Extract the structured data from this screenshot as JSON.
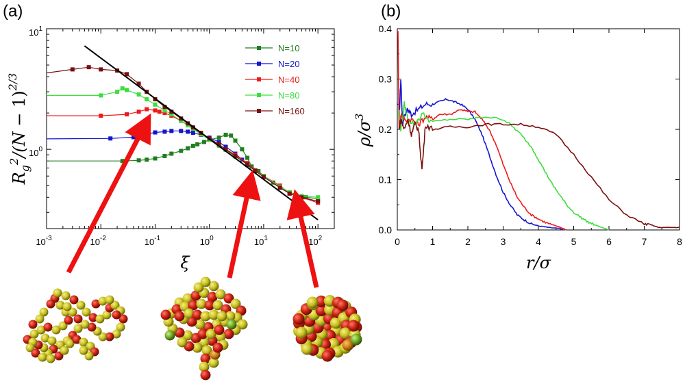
{
  "panel_a_label": "(a)",
  "panel_b_label": "(b)",
  "colors": {
    "N10": "#1f7f1f",
    "N20": "#1515d0",
    "N40": "#ee1a1a",
    "N80": "#3ddd3d",
    "N160": "#7a0f0f",
    "fit_line": "#000000",
    "arrow": "#ee1111",
    "bead_red": "#c81e0e",
    "bead_yellow": "#c8c01e",
    "bead_green": "#6aa51e",
    "bead_orange": "#cc7a10"
  },
  "chart_data": [
    {
      "type": "line",
      "panel": "(a)",
      "xlabel": "ξ",
      "ylabel": "R_g^2/(N−1)^{2/3}",
      "xscale": "log",
      "yscale": "log",
      "xlim": [
        0.001,
        200
      ],
      "ylim": [
        0.22,
        10
      ],
      "x_tick_labels": [
        "10^-3",
        "10^-2",
        "10^-1",
        "10^0",
        "10^1",
        "10^2"
      ],
      "y_tick_labels": [
        "10^0",
        "10^1"
      ],
      "legend_position": "top-right",
      "series": [
        {
          "name": "N=10",
          "color_key": "N10",
          "x": [
            0.001,
            0.025,
            0.05,
            0.07,
            0.1,
            0.15,
            0.2,
            0.3,
            0.4,
            0.5,
            0.6,
            0.8,
            1,
            1.5,
            2,
            2.5,
            3,
            4,
            5,
            6,
            8,
            10,
            15,
            20,
            30,
            40,
            60,
            100
          ],
          "y": [
            0.8,
            0.8,
            0.81,
            0.82,
            0.84,
            0.88,
            0.92,
            0.97,
            1.02,
            1.07,
            1.1,
            1.15,
            1.2,
            1.25,
            1.32,
            1.3,
            1.18,
            1.0,
            0.85,
            0.72,
            0.66,
            0.6,
            0.53,
            0.48,
            0.44,
            0.41,
            0.4,
            0.39
          ]
        },
        {
          "name": "N=20",
          "color_key": "N20",
          "x": [
            0.001,
            0.015,
            0.04,
            0.05,
            0.07,
            0.1,
            0.15,
            0.2,
            0.3,
            0.4,
            0.5,
            0.7,
            1,
            1.5,
            2,
            3,
            4,
            5,
            7,
            10,
            20,
            30,
            50,
            100
          ],
          "y": [
            1.22,
            1.23,
            1.26,
            1.3,
            1.34,
            1.38,
            1.4,
            1.42,
            1.42,
            1.4,
            1.37,
            1.32,
            1.25,
            1.15,
            1.05,
            0.92,
            0.82,
            0.74,
            0.67,
            0.59,
            0.48,
            0.43,
            0.4,
            0.37
          ]
        },
        {
          "name": "N=40",
          "color_key": "N40",
          "x": [
            0.001,
            0.01,
            0.03,
            0.05,
            0.07,
            0.1,
            0.12,
            0.15,
            0.2,
            0.3,
            0.4,
            0.5,
            0.7,
            1,
            1.5,
            2,
            3,
            5,
            7,
            10,
            20,
            30,
            50,
            100
          ],
          "y": [
            1.9,
            1.9,
            1.95,
            2.05,
            2.15,
            2.1,
            2.05,
            2.0,
            1.9,
            1.72,
            1.6,
            1.5,
            1.35,
            1.2,
            1.08,
            1.0,
            0.9,
            0.77,
            0.67,
            0.6,
            0.5,
            0.43,
            0.4,
            0.36
          ]
        },
        {
          "name": "N=80",
          "color_key": "N80",
          "x": [
            0.001,
            0.01,
            0.02,
            0.025,
            0.03,
            0.05,
            0.07,
            0.1,
            0.15,
            0.2,
            0.3,
            0.4,
            0.5,
            0.7,
            1,
            1.5,
            2,
            3,
            5,
            7,
            10,
            20,
            30,
            50,
            100
          ],
          "y": [
            2.8,
            2.8,
            3.0,
            3.2,
            3.1,
            2.85,
            2.6,
            2.35,
            2.1,
            1.95,
            1.72,
            1.58,
            1.48,
            1.33,
            1.2,
            1.07,
            0.99,
            0.87,
            0.75,
            0.66,
            0.6,
            0.49,
            0.44,
            0.41,
            0.4
          ]
        },
        {
          "name": "N=160",
          "color_key": "N160",
          "x": [
            0.001,
            0.003,
            0.006,
            0.01,
            0.02,
            0.03,
            0.05,
            0.07,
            0.1,
            0.15,
            0.2,
            0.3,
            0.4,
            0.5,
            0.7,
            1,
            1.5,
            2,
            3,
            5,
            7,
            10,
            20,
            30,
            50,
            100
          ],
          "y": [
            4.3,
            4.6,
            4.8,
            4.6,
            4.5,
            4.2,
            3.5,
            3.0,
            2.6,
            2.25,
            2.05,
            1.8,
            1.64,
            1.52,
            1.37,
            1.23,
            1.1,
            1.0,
            0.88,
            0.75,
            0.66,
            0.59,
            0.48,
            0.43,
            0.4,
            0.37
          ]
        },
        {
          "name": "",
          "color_key": "fit_line",
          "style": "solid-no-markers",
          "x": [
            0.005,
            100
          ],
          "y": [
            7.2,
            0.26
          ]
        }
      ]
    },
    {
      "type": "line",
      "panel": "(b)",
      "xlabel": "r/σ",
      "ylabel": "ρ/σ^3",
      "xlim": [
        0,
        8
      ],
      "ylim": [
        0,
        0.4
      ],
      "x_tick_labels": [
        "0",
        "1",
        "2",
        "3",
        "4",
        "5",
        "6",
        "7",
        "8"
      ],
      "y_tick_labels": [
        "0.0",
        "0.1",
        "0.2",
        "0.3",
        "0.4"
      ],
      "series": [
        {
          "name": "N=20",
          "color_key": "N20",
          "x": [
            0.05,
            0.1,
            0.15,
            0.2,
            0.3,
            0.4,
            0.6,
            0.8,
            1.0,
            1.2,
            1.4,
            1.6,
            1.8,
            2.0,
            2.2,
            2.4,
            2.6,
            2.8,
            3.0,
            3.2,
            3.4,
            3.6,
            3.8,
            4.0,
            4.2,
            4.4,
            4.6,
            4.7
          ],
          "y": [
            0.22,
            0.3,
            0.21,
            0.23,
            0.24,
            0.23,
            0.24,
            0.25,
            0.25,
            0.255,
            0.26,
            0.255,
            0.25,
            0.24,
            0.22,
            0.19,
            0.15,
            0.11,
            0.075,
            0.05,
            0.03,
            0.02,
            0.012,
            0.008,
            0.006,
            0.004,
            0.003,
            0.0
          ]
        },
        {
          "name": "N=40",
          "color_key": "N40",
          "x": [
            0.02,
            0.05,
            0.1,
            0.2,
            0.4,
            0.6,
            0.8,
            1.0,
            1.2,
            1.5,
            1.8,
            2.0,
            2.2,
            2.4,
            2.6,
            2.8,
            3.0,
            3.2,
            3.4,
            3.6,
            3.8,
            4.0,
            4.2,
            4.4,
            4.6,
            4.8
          ],
          "y": [
            0.4,
            0.2,
            0.23,
            0.22,
            0.22,
            0.21,
            0.225,
            0.22,
            0.23,
            0.23,
            0.24,
            0.235,
            0.235,
            0.22,
            0.2,
            0.17,
            0.13,
            0.095,
            0.065,
            0.045,
            0.03,
            0.022,
            0.015,
            0.01,
            0.006,
            0.0
          ]
        },
        {
          "name": "N=80",
          "color_key": "N80",
          "x": [
            0.05,
            0.1,
            0.2,
            0.3,
            0.5,
            0.7,
            1.0,
            1.5,
            2.0,
            2.5,
            3.0,
            3.2,
            3.5,
            3.8,
            4.0,
            4.2,
            4.4,
            4.6,
            4.8,
            5.0,
            5.2,
            5.4,
            5.6,
            5.8,
            6.0
          ],
          "y": [
            0.24,
            0.2,
            0.25,
            0.22,
            0.21,
            0.23,
            0.215,
            0.22,
            0.22,
            0.225,
            0.22,
            0.21,
            0.19,
            0.165,
            0.14,
            0.115,
            0.09,
            0.07,
            0.05,
            0.035,
            0.025,
            0.016,
            0.01,
            0.005,
            0.0
          ]
        },
        {
          "name": "N=160",
          "color_key": "N160",
          "x": [
            0.05,
            0.1,
            0.2,
            0.3,
            0.4,
            0.5,
            0.6,
            0.7,
            0.8,
            1.0,
            1.5,
            2.0,
            2.5,
            3.0,
            3.5,
            4.0,
            4.5,
            5.0,
            5.5,
            6.0,
            6.5,
            7.0,
            7.2,
            7.4,
            7.6,
            7.8,
            8.0
          ],
          "y": [
            0.2,
            0.22,
            0.2,
            0.22,
            0.19,
            0.21,
            0.2,
            0.12,
            0.21,
            0.2,
            0.205,
            0.205,
            0.21,
            0.21,
            0.21,
            0.205,
            0.19,
            0.15,
            0.105,
            0.06,
            0.03,
            0.012,
            0.01,
            0.005,
            0.005,
            0.005,
            0.005
          ]
        }
      ]
    }
  ]
}
